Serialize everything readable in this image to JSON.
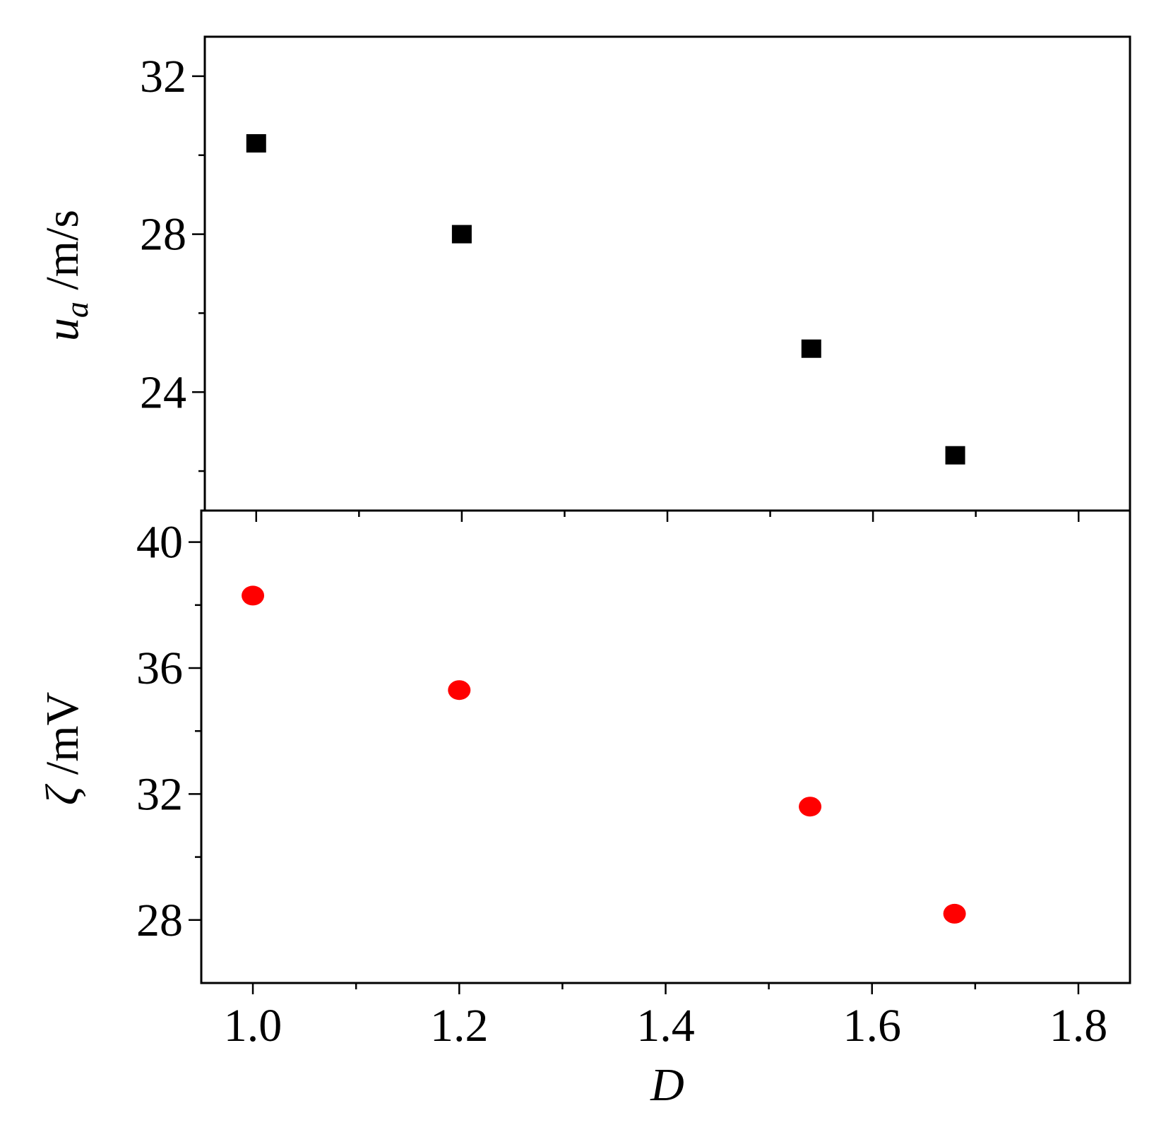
{
  "chart_data": [
    {
      "type": "scatter",
      "panel": "top",
      "xlabel": "D",
      "ylabel": {
        "var": "u",
        "sub": "a",
        "unit": " /m/s"
      },
      "xlim": [
        0.95,
        1.85
      ],
      "ylim": [
        21,
        33
      ],
      "yticks": [
        24,
        28,
        32
      ],
      "ytick_labels": [
        "24",
        "28",
        "32"
      ],
      "y_minor_step": 2,
      "x_ticks_shown": false,
      "marker": "square",
      "color": "#000000",
      "x": [
        1.0,
        1.2,
        1.54,
        1.68
      ],
      "y": [
        30.3,
        28.0,
        25.1,
        22.4
      ]
    },
    {
      "type": "scatter",
      "panel": "bottom",
      "xlabel": "D",
      "ylabel": {
        "var": "ζ",
        "unit": " /mV"
      },
      "xlim": [
        0.95,
        1.85
      ],
      "ylim": [
        26,
        41
      ],
      "xticks": [
        1.0,
        1.2,
        1.4,
        1.6,
        1.8
      ],
      "xtick_labels": [
        "1.0",
        "1.2",
        "1.4",
        "1.6",
        "1.8"
      ],
      "x_minor_step": 0.1,
      "yticks": [
        28,
        32,
        36,
        40
      ],
      "ytick_labels": [
        "28",
        "32",
        "36",
        "40"
      ],
      "y_minor_step": 2,
      "marker": "circle",
      "color": "#ff0000",
      "x": [
        1.0,
        1.2,
        1.54,
        1.68
      ],
      "y": [
        38.3,
        35.3,
        31.6,
        28.2
      ]
    }
  ]
}
